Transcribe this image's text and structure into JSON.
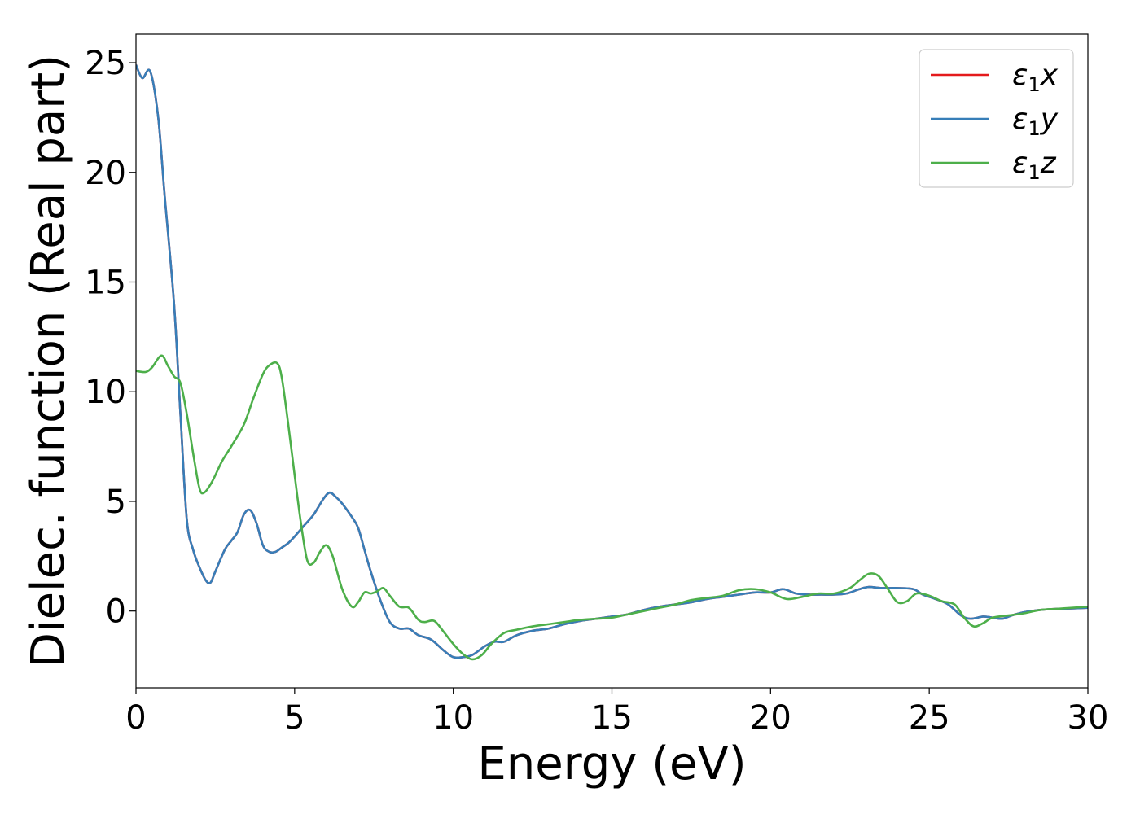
{
  "chart_data": {
    "type": "line",
    "title": "",
    "xlabel": "Energy (eV)",
    "ylabel": "Dielec. function (Real part)",
    "xlim": [
      0,
      30
    ],
    "ylim": [
      -3.5,
      26.3
    ],
    "xticks": [
      0,
      5,
      10,
      15,
      20,
      25,
      30
    ],
    "yticks": [
      0,
      5,
      10,
      15,
      20,
      25
    ],
    "grid": false,
    "legend_position": "top-right",
    "series": [
      {
        "name": "ε1x",
        "color": "#e41a1c",
        "x": [
          0,
          0.2,
          0.45,
          0.7,
          0.9,
          1.2,
          1.4,
          1.6,
          1.8,
          2.0,
          2.2,
          2.35,
          2.5,
          2.8,
          3.0,
          3.2,
          3.4,
          3.6,
          3.8,
          4.0,
          4.2,
          4.4,
          4.6,
          4.8,
          5.0,
          5.3,
          5.6,
          5.9,
          6.1,
          6.3,
          6.5,
          6.8,
          7.0,
          7.2,
          7.4,
          7.7,
          8.0,
          8.3,
          8.6,
          8.9,
          9.3,
          9.7,
          10.0,
          10.3,
          10.6,
          11.0,
          11.3,
          11.6,
          12.0,
          12.5,
          13.0,
          13.5,
          14.0,
          14.5,
          15.0,
          15.5,
          16.0,
          16.5,
          17.0,
          17.5,
          18.0,
          18.5,
          19.0,
          19.5,
          20.0,
          20.4,
          20.8,
          21.2,
          21.6,
          22.0,
          22.4,
          22.8,
          23.1,
          23.5,
          24.0,
          24.5,
          24.8,
          25.2,
          25.6,
          26.0,
          26.3,
          26.7,
          27.0,
          27.3,
          27.6,
          28.0,
          28.5,
          29.0,
          29.5,
          30.0
        ],
        "values": [
          24.9,
          24.3,
          24.6,
          22.5,
          19.0,
          14.0,
          9.0,
          4.2,
          2.8,
          2.0,
          1.4,
          1.3,
          1.8,
          2.8,
          3.2,
          3.6,
          4.4,
          4.6,
          4.0,
          3.0,
          2.7,
          2.7,
          2.9,
          3.1,
          3.4,
          3.9,
          4.4,
          5.1,
          5.4,
          5.2,
          4.9,
          4.3,
          3.8,
          2.8,
          1.8,
          0.5,
          -0.5,
          -0.8,
          -0.8,
          -1.1,
          -1.3,
          -1.8,
          -2.1,
          -2.1,
          -2.0,
          -1.6,
          -1.4,
          -1.4,
          -1.1,
          -0.9,
          -0.8,
          -0.6,
          -0.45,
          -0.35,
          -0.25,
          -0.15,
          0.05,
          0.2,
          0.3,
          0.4,
          0.55,
          0.65,
          0.75,
          0.85,
          0.85,
          1.0,
          0.8,
          0.75,
          0.75,
          0.75,
          0.8,
          1.0,
          1.1,
          1.05,
          1.05,
          1.0,
          0.75,
          0.55,
          0.3,
          -0.2,
          -0.35,
          -0.25,
          -0.3,
          -0.35,
          -0.2,
          -0.05,
          0.05,
          0.1,
          0.12,
          0.15
        ]
      },
      {
        "name": "ε1y",
        "color": "#377eb8",
        "x": [
          0,
          0.2,
          0.45,
          0.7,
          0.9,
          1.2,
          1.4,
          1.6,
          1.8,
          2.0,
          2.2,
          2.35,
          2.5,
          2.8,
          3.0,
          3.2,
          3.4,
          3.6,
          3.8,
          4.0,
          4.2,
          4.4,
          4.6,
          4.8,
          5.0,
          5.3,
          5.6,
          5.9,
          6.1,
          6.3,
          6.5,
          6.8,
          7.0,
          7.2,
          7.4,
          7.7,
          8.0,
          8.3,
          8.6,
          8.9,
          9.3,
          9.7,
          10.0,
          10.3,
          10.6,
          11.0,
          11.3,
          11.6,
          12.0,
          12.5,
          13.0,
          13.5,
          14.0,
          14.5,
          15.0,
          15.5,
          16.0,
          16.5,
          17.0,
          17.5,
          18.0,
          18.5,
          19.0,
          19.5,
          20.0,
          20.4,
          20.8,
          21.2,
          21.6,
          22.0,
          22.4,
          22.8,
          23.1,
          23.5,
          24.0,
          24.5,
          24.8,
          25.2,
          25.6,
          26.0,
          26.3,
          26.7,
          27.0,
          27.3,
          27.6,
          28.0,
          28.5,
          29.0,
          29.5,
          30.0
        ],
        "values": [
          24.9,
          24.3,
          24.6,
          22.5,
          19.0,
          14.0,
          9.0,
          4.2,
          2.8,
          2.0,
          1.4,
          1.3,
          1.8,
          2.8,
          3.2,
          3.6,
          4.4,
          4.6,
          4.0,
          3.0,
          2.7,
          2.7,
          2.9,
          3.1,
          3.4,
          3.9,
          4.4,
          5.1,
          5.4,
          5.2,
          4.9,
          4.3,
          3.8,
          2.8,
          1.8,
          0.5,
          -0.5,
          -0.8,
          -0.8,
          -1.1,
          -1.3,
          -1.8,
          -2.1,
          -2.1,
          -2.0,
          -1.6,
          -1.4,
          -1.4,
          -1.1,
          -0.9,
          -0.8,
          -0.6,
          -0.45,
          -0.35,
          -0.25,
          -0.15,
          0.05,
          0.2,
          0.3,
          0.4,
          0.55,
          0.65,
          0.75,
          0.85,
          0.85,
          1.0,
          0.8,
          0.75,
          0.75,
          0.75,
          0.8,
          1.0,
          1.1,
          1.05,
          1.05,
          1.0,
          0.75,
          0.55,
          0.3,
          -0.2,
          -0.35,
          -0.25,
          -0.3,
          -0.35,
          -0.2,
          -0.05,
          0.05,
          0.1,
          0.12,
          0.15
        ]
      },
      {
        "name": "ε1z",
        "color": "#4daf4a",
        "x": [
          0,
          0.3,
          0.5,
          0.8,
          1.0,
          1.2,
          1.4,
          1.6,
          1.8,
          2.0,
          2.15,
          2.4,
          2.7,
          3.0,
          3.4,
          3.7,
          4.0,
          4.2,
          4.45,
          4.6,
          4.8,
          5.0,
          5.2,
          5.4,
          5.6,
          5.8,
          6.0,
          6.2,
          6.5,
          6.8,
          7.0,
          7.2,
          7.4,
          7.6,
          7.8,
          8.0,
          8.3,
          8.6,
          8.9,
          9.1,
          9.4,
          9.7,
          10.0,
          10.3,
          10.6,
          10.9,
          11.2,
          11.6,
          12.0,
          12.5,
          13.0,
          13.5,
          14.0,
          14.5,
          15.0,
          15.5,
          16.0,
          16.5,
          17.0,
          17.5,
          18.0,
          18.5,
          19.0,
          19.5,
          20.0,
          20.5,
          21.0,
          21.5,
          22.0,
          22.5,
          22.8,
          23.1,
          23.4,
          23.7,
          24.0,
          24.3,
          24.6,
          25.0,
          25.4,
          25.8,
          26.1,
          26.4,
          26.7,
          27.0,
          27.5,
          28.0,
          28.5,
          29.0,
          29.5,
          30.0
        ],
        "values": [
          10.95,
          10.9,
          11.1,
          11.65,
          11.2,
          10.7,
          10.4,
          9.0,
          7.2,
          5.6,
          5.4,
          5.9,
          6.8,
          7.5,
          8.5,
          9.7,
          10.8,
          11.2,
          11.3,
          10.6,
          8.5,
          6.2,
          4.0,
          2.3,
          2.2,
          2.7,
          3.0,
          2.5,
          1.0,
          0.2,
          0.4,
          0.85,
          0.8,
          0.9,
          1.05,
          0.7,
          0.2,
          0.15,
          -0.4,
          -0.5,
          -0.45,
          -0.95,
          -1.5,
          -1.95,
          -2.2,
          -2.0,
          -1.5,
          -1.0,
          -0.85,
          -0.7,
          -0.6,
          -0.5,
          -0.4,
          -0.35,
          -0.3,
          -0.15,
          0.0,
          0.15,
          0.3,
          0.5,
          0.6,
          0.7,
          0.95,
          1.0,
          0.85,
          0.55,
          0.65,
          0.8,
          0.8,
          1.05,
          1.4,
          1.7,
          1.6,
          1.0,
          0.4,
          0.45,
          0.8,
          0.7,
          0.45,
          0.3,
          -0.3,
          -0.7,
          -0.55,
          -0.3,
          -0.2,
          -0.1,
          0.05,
          0.1,
          0.15,
          0.2
        ]
      }
    ]
  }
}
